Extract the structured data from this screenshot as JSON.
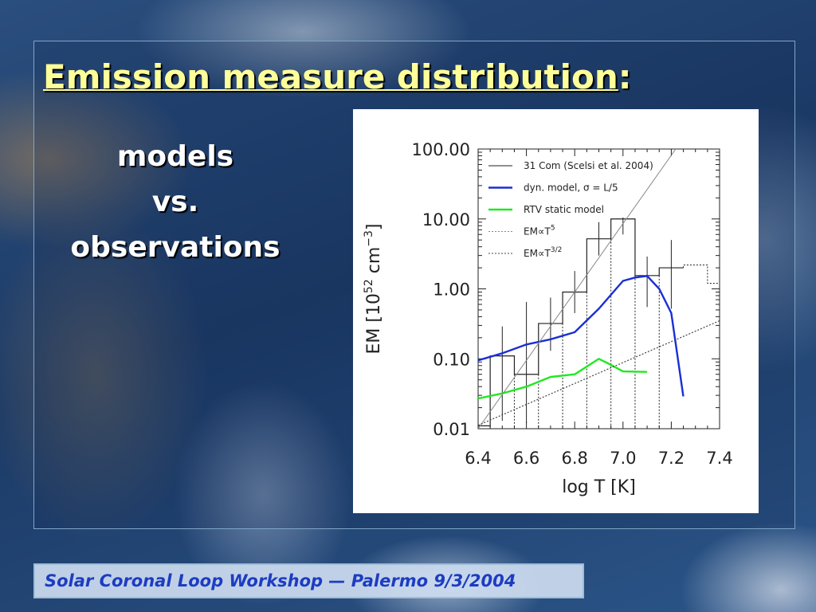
{
  "slide": {
    "title": "Emission measure distribution",
    "title_suffix": ":",
    "subtitle_lines": [
      "models",
      "vs.",
      "observations"
    ],
    "footer": "Solar Coronal Loop Workshop — Palermo 9/3/2004"
  },
  "colors": {
    "title": "#ffff99",
    "footer_text": "#1d3cc2",
    "dyn_model": "#1a2fd6",
    "rtv_model": "#22e822",
    "observation": "#222222"
  },
  "chart_data": {
    "type": "line",
    "xlabel": "log T [K]",
    "ylabel": "EM [10^52 cm^-3]",
    "ylabel_parts": {
      "lead": "EM [10",
      "exp1": "52",
      "mid": " cm",
      "exp2": "−3",
      "end": "]"
    },
    "xlim": [
      6.4,
      7.4
    ],
    "ylim": [
      0.01,
      100
    ],
    "yscale": "log",
    "x_ticks": [
      "6.4",
      "6.6",
      "6.8",
      "7.0",
      "7.2",
      "7.4"
    ],
    "x_tick_values": [
      6.4,
      6.6,
      6.8,
      7.0,
      7.2,
      7.4
    ],
    "y_ticks": [
      "0.01",
      "0.10",
      "1.00",
      "10.00",
      "100.00"
    ],
    "y_tick_values": [
      0.01,
      0.1,
      1,
      10,
      100
    ],
    "legend_position": "top-left",
    "legend": [
      {
        "key": "obs",
        "label": "31 Com (Scelsi et al. 2004)"
      },
      {
        "key": "dyn",
        "label": "dyn. model, σ = L/5"
      },
      {
        "key": "rtv",
        "label": "RTV static model"
      },
      {
        "key": "t5",
        "label": "EM∝T",
        "sup": "5"
      },
      {
        "key": "t32",
        "label": "EM∝T",
        "sup": "3/2"
      }
    ],
    "series": [
      {
        "key": "obs",
        "style": "histogram",
        "bins": [
          {
            "x0": 6.4,
            "x1": 6.45,
            "y": 0.011
          },
          {
            "x0": 6.45,
            "x1": 6.55,
            "y": 0.11
          },
          {
            "x0": 6.55,
            "x1": 6.65,
            "y": 0.06
          },
          {
            "x0": 6.65,
            "x1": 6.75,
            "y": 0.32
          },
          {
            "x0": 6.75,
            "x1": 6.85,
            "y": 0.9
          },
          {
            "x0": 6.85,
            "x1": 6.95,
            "y": 5.2
          },
          {
            "x0": 6.95,
            "x1": 7.05,
            "y": 10
          },
          {
            "x0": 7.05,
            "x1": 7.15,
            "y": 1.55
          },
          {
            "x0": 7.15,
            "x1": 7.25,
            "y": 2.0
          }
        ],
        "extension_bins": [
          {
            "x0": 7.25,
            "x1": 7.35,
            "y": 2.2
          },
          {
            "x0": 7.35,
            "x1": 7.4,
            "y": 1.2
          }
        ],
        "error_bars": [
          {
            "x": 6.5,
            "lo": 0.013,
            "hi": 0.29
          },
          {
            "x": 6.6,
            "lo": 0.012,
            "hi": 0.65
          },
          {
            "x": 6.7,
            "lo": 0.13,
            "hi": 0.75
          },
          {
            "x": 6.8,
            "lo": 0.45,
            "hi": 1.8
          },
          {
            "x": 6.9,
            "lo": 3.0,
            "hi": 9.0
          },
          {
            "x": 7.0,
            "lo": 6.0,
            "hi": 10.5
          },
          {
            "x": 7.1,
            "lo": 0.55,
            "hi": 2.9
          },
          {
            "x": 7.2,
            "lo": 0.52,
            "hi": 5.0
          }
        ]
      },
      {
        "key": "dyn",
        "style": "line",
        "x": [
          6.4,
          6.5,
          6.6,
          6.7,
          6.8,
          6.9,
          7.0,
          7.05,
          7.1,
          7.15,
          7.2,
          7.25
        ],
        "y": [
          0.095,
          0.12,
          0.16,
          0.19,
          0.24,
          0.52,
          1.3,
          1.45,
          1.53,
          1.0,
          0.45,
          0.029
        ]
      },
      {
        "key": "rtv",
        "style": "line",
        "x": [
          6.4,
          6.5,
          6.6,
          6.7,
          6.8,
          6.9,
          6.95,
          7.0,
          7.1
        ],
        "y": [
          0.027,
          0.032,
          0.04,
          0.055,
          0.06,
          0.1,
          0.082,
          0.066,
          0.065
        ]
      },
      {
        "key": "t5",
        "style": "thin-line",
        "x": [
          6.4,
          7.28
        ],
        "y": [
          0.01,
          200
        ]
      },
      {
        "key": "t32",
        "style": "dotted-line",
        "x": [
          6.4,
          7.4
        ],
        "y": [
          0.0112,
          0.35
        ]
      }
    ]
  }
}
